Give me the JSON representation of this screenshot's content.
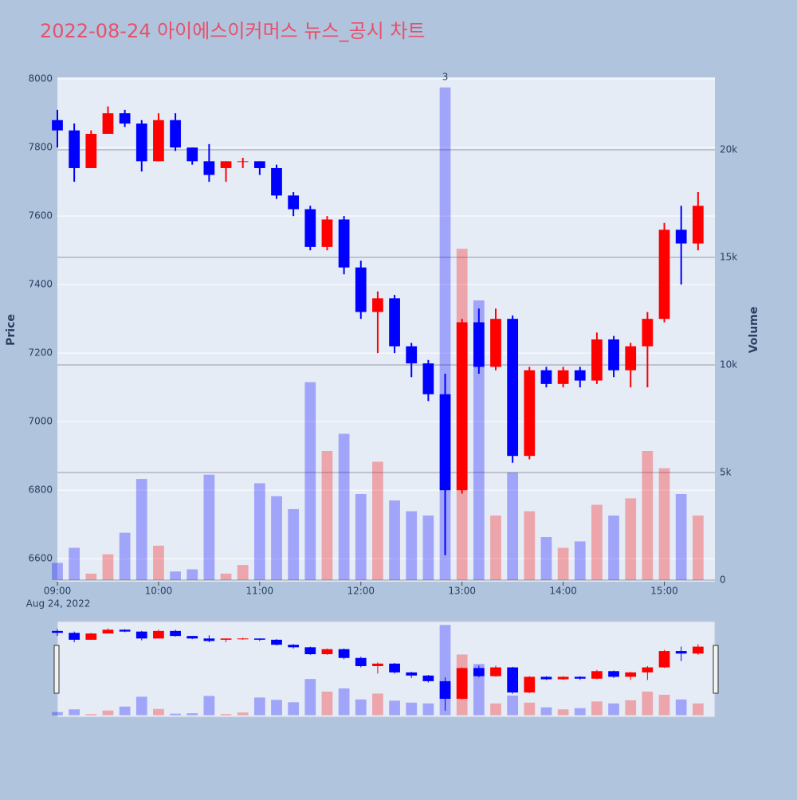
{
  "chart_data": {
    "type": "candlestick",
    "title": "2022-08-24 아이에스이커머스 뉴스_공시 차트",
    "y_label": "Price",
    "y2_label": "Volume",
    "x_date_label": "Aug 24, 2022",
    "increasing_color": "#ff0000",
    "decreasing_color": "#0000ff",
    "xlim": [
      "2022-08-24 09:00",
      "2022-08-24 15:30"
    ],
    "xticks": [
      {
        "value": "2022-08-24 09:00",
        "label": "09:00"
      },
      {
        "value": "2022-08-24 10:00",
        "label": "10:00"
      },
      {
        "value": "2022-08-24 11:00",
        "label": "11:00"
      },
      {
        "value": "2022-08-24 12:00",
        "label": "12:00"
      },
      {
        "value": "2022-08-24 13:00",
        "label": "13:00"
      },
      {
        "value": "2022-08-24 14:00",
        "label": "14:00"
      },
      {
        "value": "2022-08-24 15:00",
        "label": "15:00"
      }
    ],
    "ylim": [
      6533,
      8005
    ],
    "yticks": [
      6600,
      6800,
      7000,
      7200,
      7400,
      7600,
      7800,
      8000
    ],
    "y2lim": [
      -74,
      23370
    ],
    "y2ticks": [
      0,
      {
        "value": 5000,
        "label": "5k"
      },
      {
        "value": 10000,
        "label": "10k"
      },
      {
        "value": 15000,
        "label": "15k"
      },
      {
        "value": 20000,
        "label": "20k"
      }
    ],
    "annotations": [
      {
        "text": "3",
        "x": "2022-08-24 12:50"
      }
    ],
    "x": [
      "2022-08-24 09:00",
      "2022-08-24 09:10",
      "2022-08-24 09:20",
      "2022-08-24 09:30",
      "2022-08-24 09:40",
      "2022-08-24 09:50",
      "2022-08-24 10:00",
      "2022-08-24 10:10",
      "2022-08-24 10:20",
      "2022-08-24 10:30",
      "2022-08-24 10:40",
      "2022-08-24 10:50",
      "2022-08-24 11:00",
      "2022-08-24 11:10",
      "2022-08-24 11:20",
      "2022-08-24 11:30",
      "2022-08-24 11:40",
      "2022-08-24 11:50",
      "2022-08-24 12:00",
      "2022-08-24 12:10",
      "2022-08-24 12:20",
      "2022-08-24 12:30",
      "2022-08-24 12:40",
      "2022-08-24 12:50",
      "2022-08-24 13:00",
      "2022-08-24 13:10",
      "2022-08-24 13:20",
      "2022-08-24 13:30",
      "2022-08-24 13:40",
      "2022-08-24 13:50",
      "2022-08-24 14:00",
      "2022-08-24 14:10",
      "2022-08-24 14:20",
      "2022-08-24 14:30",
      "2022-08-24 14:40",
      "2022-08-24 14:50",
      "2022-08-24 15:00",
      "2022-08-24 15:10",
      "2022-08-24 15:20"
    ],
    "open": [
      7880,
      7850,
      7740,
      7840,
      7900,
      7870,
      7760,
      7880,
      7800,
      7760,
      7740,
      7760,
      7760,
      7740,
      7660,
      7620,
      7510,
      7590,
      7450,
      7320,
      7360,
      7220,
      7170,
      7080,
      6800,
      7290,
      7160,
      7300,
      6900,
      7150,
      7110,
      7150,
      7120,
      7240,
      7150,
      7220,
      7300,
      7560,
      7520
    ],
    "high": [
      7910,
      7870,
      7850,
      7920,
      7910,
      7880,
      7900,
      7900,
      7800,
      7810,
      7760,
      7770,
      7760,
      7750,
      7670,
      7630,
      7600,
      7600,
      7470,
      7380,
      7370,
      7230,
      7180,
      7140,
      7300,
      7330,
      7330,
      7310,
      7160,
      7160,
      7160,
      7160,
      7260,
      7250,
      7230,
      7320,
      7580,
      7630,
      7670
    ],
    "low": [
      7800,
      7700,
      7740,
      7840,
      7860,
      7730,
      7760,
      7790,
      7750,
      7700,
      7700,
      7740,
      7720,
      7650,
      7600,
      7500,
      7500,
      7430,
      7300,
      7200,
      7200,
      7130,
      7060,
      6610,
      6790,
      7140,
      7150,
      6880,
      6890,
      7100,
      7100,
      7100,
      7110,
      7130,
      7100,
      7100,
      7290,
      7400,
      7500
    ],
    "close": [
      7850,
      7740,
      7840,
      7900,
      7870,
      7760,
      7880,
      7800,
      7760,
      7720,
      7760,
      7760,
      7740,
      7660,
      7620,
      7510,
      7590,
      7450,
      7320,
      7360,
      7220,
      7170,
      7080,
      6800,
      7290,
      7160,
      7300,
      6900,
      7150,
      7110,
      7150,
      7120,
      7240,
      7150,
      7220,
      7300,
      7560,
      7520,
      7630
    ],
    "volume": [
      800,
      1500,
      300,
      1200,
      2200,
      4700,
      1600,
      400,
      500,
      4900,
      300,
      700,
      4500,
      3900,
      3300,
      9200,
      6000,
      6800,
      4000,
      5500,
      3700,
      3200,
      3000,
      22900,
      15400,
      13000,
      3000,
      5000,
      3200,
      2000,
      1500,
      1800,
      3500,
      3000,
      3800,
      6000,
      5200,
      4000,
      3000
    ]
  }
}
